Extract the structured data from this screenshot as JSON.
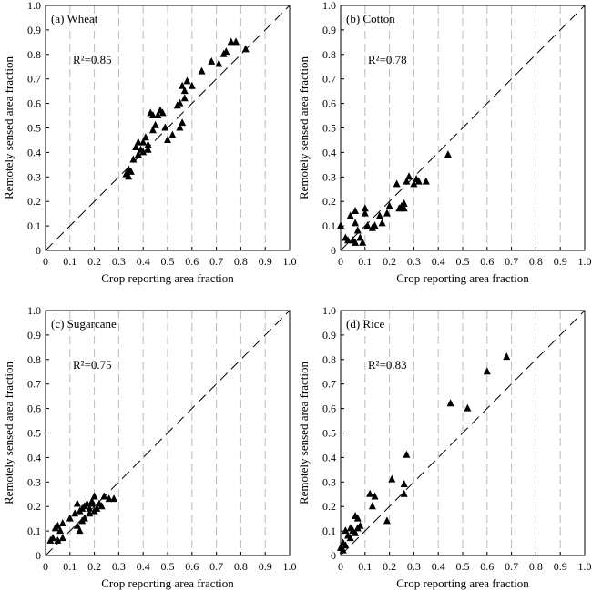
{
  "chart_data": [
    {
      "type": "scatter",
      "title": "(a)  Wheat",
      "r2_text": "R²=0.85",
      "xlabel": "Crop reporting area fraction",
      "ylabel": "Remotely sensed area fraction",
      "xlim": [
        0,
        1.0
      ],
      "ylim": [
        0,
        1.0
      ],
      "xticks": [
        "0",
        "0.1",
        "0.2",
        "0.3",
        "0.4",
        "0.5",
        "0.6",
        "0.7",
        "0.8",
        "0.9",
        "1.0"
      ],
      "yticks": [
        "0",
        "0.1",
        "0.2",
        "0.3",
        "0.4",
        "0.5",
        "0.6",
        "0.7",
        "0.8",
        "0.9",
        "1.0"
      ],
      "vertical_grid": "dashed, at each x tick",
      "reference_line": "1:1 dashed",
      "marker": "filled triangle",
      "points": [
        [
          0.33,
          0.31
        ],
        [
          0.34,
          0.3
        ],
        [
          0.34,
          0.33
        ],
        [
          0.35,
          0.32
        ],
        [
          0.36,
          0.37
        ],
        [
          0.37,
          0.42
        ],
        [
          0.38,
          0.44
        ],
        [
          0.38,
          0.39
        ],
        [
          0.39,
          0.41
        ],
        [
          0.4,
          0.44
        ],
        [
          0.4,
          0.4
        ],
        [
          0.41,
          0.46
        ],
        [
          0.42,
          0.43
        ],
        [
          0.42,
          0.41
        ],
        [
          0.43,
          0.56
        ],
        [
          0.44,
          0.55
        ],
        [
          0.44,
          0.49
        ],
        [
          0.45,
          0.51
        ],
        [
          0.46,
          0.55
        ],
        [
          0.47,
          0.57
        ],
        [
          0.48,
          0.56
        ],
        [
          0.49,
          0.5
        ],
        [
          0.5,
          0.45
        ],
        [
          0.52,
          0.47
        ],
        [
          0.54,
          0.59
        ],
        [
          0.55,
          0.6
        ],
        [
          0.55,
          0.5
        ],
        [
          0.56,
          0.52
        ],
        [
          0.56,
          0.67
        ],
        [
          0.57,
          0.62
        ],
        [
          0.57,
          0.65
        ],
        [
          0.58,
          0.69
        ],
        [
          0.6,
          0.67
        ],
        [
          0.64,
          0.73
        ],
        [
          0.68,
          0.77
        ],
        [
          0.71,
          0.76
        ],
        [
          0.73,
          0.8
        ],
        [
          0.74,
          0.81
        ],
        [
          0.76,
          0.85
        ],
        [
          0.78,
          0.85
        ],
        [
          0.82,
          0.82
        ]
      ]
    },
    {
      "type": "scatter",
      "title": "(b)  Cotton",
      "r2_text": "R²=0.78",
      "xlabel": "Crop reporting area fraction",
      "ylabel": "Remotely sensed area fraction",
      "xlim": [
        0,
        1.0
      ],
      "ylim": [
        0,
        1.0
      ],
      "xticks": [
        "0",
        "0.1",
        "0.2",
        "0.3",
        "0.4",
        "0.5",
        "0.6",
        "0.7",
        "0.8",
        "0.9",
        "1.0"
      ],
      "yticks": [
        "0",
        "0.1",
        "0.2",
        "0.3",
        "0.4",
        "0.5",
        "0.6",
        "0.7",
        "0.8",
        "0.9",
        "1.0"
      ],
      "vertical_grid": "dashed, at each x tick",
      "reference_line": "1:1 dashed",
      "marker": "filled triangle",
      "points": [
        [
          0.0,
          0.1
        ],
        [
          0.02,
          0.05
        ],
        [
          0.03,
          0.04
        ],
        [
          0.04,
          0.14
        ],
        [
          0.05,
          0.04
        ],
        [
          0.06,
          0.11
        ],
        [
          0.06,
          0.16
        ],
        [
          0.06,
          0.03
        ],
        [
          0.07,
          0.08
        ],
        [
          0.08,
          0.05
        ],
        [
          0.09,
          0.03
        ],
        [
          0.1,
          0.15
        ],
        [
          0.1,
          0.17
        ],
        [
          0.11,
          0.1
        ],
        [
          0.13,
          0.09
        ],
        [
          0.14,
          0.1
        ],
        [
          0.16,
          0.14
        ],
        [
          0.17,
          0.11
        ],
        [
          0.19,
          0.15
        ],
        [
          0.2,
          0.18
        ],
        [
          0.23,
          0.27
        ],
        [
          0.24,
          0.17
        ],
        [
          0.25,
          0.18
        ],
        [
          0.26,
          0.19
        ],
        [
          0.26,
          0.17
        ],
        [
          0.27,
          0.28
        ],
        [
          0.28,
          0.3
        ],
        [
          0.3,
          0.27
        ],
        [
          0.31,
          0.29
        ],
        [
          0.32,
          0.28
        ],
        [
          0.35,
          0.28
        ],
        [
          0.44,
          0.39
        ]
      ]
    },
    {
      "type": "scatter",
      "title": "(c)  Sugarcane",
      "r2_text": "R²=0.75",
      "xlabel": "Crop reporting area fraction",
      "ylabel": "Remotely sensed area fraction",
      "xlim": [
        0,
        1.0
      ],
      "ylim": [
        0,
        1.0
      ],
      "xticks": [
        "0",
        "0.1",
        "0.2",
        "0.3",
        "0.4",
        "0.5",
        "0.6",
        "0.7",
        "0.8",
        "0.9",
        "1.0"
      ],
      "yticks": [
        "0",
        "0.1",
        "0.2",
        "0.3",
        "0.4",
        "0.5",
        "0.6",
        "0.7",
        "0.8",
        "0.9",
        "1.0"
      ],
      "vertical_grid": "dashed, at each x tick",
      "reference_line": "1:1 dashed",
      "marker": "filled triangle",
      "points": [
        [
          0.02,
          0.06
        ],
        [
          0.03,
          0.07
        ],
        [
          0.04,
          0.11
        ],
        [
          0.05,
          0.06
        ],
        [
          0.05,
          0.12
        ],
        [
          0.06,
          0.1
        ],
        [
          0.07,
          0.13
        ],
        [
          0.07,
          0.07
        ],
        [
          0.1,
          0.15
        ],
        [
          0.12,
          0.17
        ],
        [
          0.13,
          0.12
        ],
        [
          0.13,
          0.21
        ],
        [
          0.14,
          0.18
        ],
        [
          0.14,
          0.1
        ],
        [
          0.15,
          0.19
        ],
        [
          0.15,
          0.14
        ],
        [
          0.16,
          0.2
        ],
        [
          0.16,
          0.15
        ],
        [
          0.17,
          0.21
        ],
        [
          0.18,
          0.19
        ],
        [
          0.18,
          0.17
        ],
        [
          0.19,
          0.22
        ],
        [
          0.19,
          0.21
        ],
        [
          0.2,
          0.24
        ],
        [
          0.2,
          0.18
        ],
        [
          0.21,
          0.19
        ],
        [
          0.22,
          0.21
        ],
        [
          0.23,
          0.2
        ],
        [
          0.24,
          0.24
        ],
        [
          0.26,
          0.23
        ],
        [
          0.28,
          0.23
        ]
      ]
    },
    {
      "type": "scatter",
      "title": "(d)  Rice",
      "r2_text": "R²=0.83",
      "xlabel": "Crop reporting area fraction",
      "ylabel": "Remotely sensed area fraction",
      "xlim": [
        0,
        1.0
      ],
      "ylim": [
        0,
        1.0
      ],
      "xticks": [
        "0",
        "0.1",
        "0.2",
        "0.3",
        "0.4",
        "0.5",
        "0.6",
        "0.7",
        "0.8",
        "0.9",
        "1.0"
      ],
      "yticks": [
        "0",
        "0.1",
        "0.2",
        "0.3",
        "0.4",
        "0.5",
        "0.6",
        "0.7",
        "0.8",
        "0.9",
        "1.0"
      ],
      "vertical_grid": "dashed, at each x tick",
      "reference_line": "1:1 dashed",
      "marker": "filled triangle",
      "points": [
        [
          0.0,
          0.03
        ],
        [
          0.01,
          0.02
        ],
        [
          0.01,
          0.05
        ],
        [
          0.02,
          0.04
        ],
        [
          0.02,
          0.1
        ],
        [
          0.03,
          0.08
        ],
        [
          0.04,
          0.07
        ],
        [
          0.04,
          0.11
        ],
        [
          0.05,
          0.1
        ],
        [
          0.06,
          0.09
        ],
        [
          0.06,
          0.16
        ],
        [
          0.07,
          0.15
        ],
        [
          0.07,
          0.11
        ],
        [
          0.08,
          0.12
        ],
        [
          0.12,
          0.25
        ],
        [
          0.13,
          0.2
        ],
        [
          0.14,
          0.24
        ],
        [
          0.19,
          0.14
        ],
        [
          0.21,
          0.31
        ],
        [
          0.26,
          0.29
        ],
        [
          0.26,
          0.25
        ],
        [
          0.27,
          0.41
        ],
        [
          0.45,
          0.62
        ],
        [
          0.52,
          0.6
        ],
        [
          0.6,
          0.75
        ],
        [
          0.68,
          0.81
        ]
      ]
    }
  ]
}
